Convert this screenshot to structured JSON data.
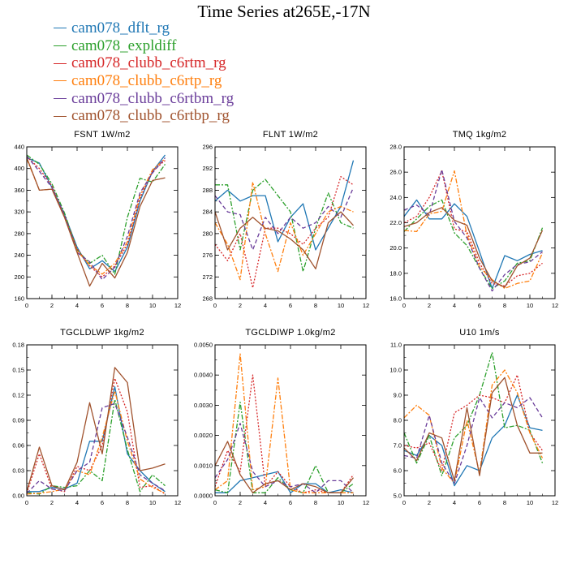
{
  "title": "Time Series at265E,-17N",
  "series": [
    {
      "name": "cam078_dflt_rg",
      "color": "#1f77b4",
      "dash": ""
    },
    {
      "name": "cam078_expldiff",
      "color": "#2ca02c",
      "dash": "6,2,2,2"
    },
    {
      "name": "cam078_clubb_c6rtm_rg",
      "color": "#d62728",
      "dash": "2,2"
    },
    {
      "name": "cam078_clubb_c6rtp_rg",
      "color": "#ff7f0e",
      "dash": "6,2,2,2"
    },
    {
      "name": "cam078_clubb_c6rtbm_rg",
      "color": "#6a3d9a",
      "dash": "5,3"
    },
    {
      "name": "cam078_clubb_c6rtbp_rg",
      "color": "#a0522d",
      "dash": ""
    }
  ],
  "chart_data": [
    {
      "type": "line",
      "title": "FSNT   1W/m2",
      "x": [
        0,
        1,
        2,
        3,
        4,
        5,
        6,
        7,
        8,
        9,
        10,
        11
      ],
      "xlim": [
        0,
        12
      ],
      "xticks": [
        "0",
        "2",
        "4",
        "6",
        "8",
        "10",
        "12"
      ],
      "ylim": [
        160,
        440
      ],
      "yticks": [
        "160",
        "200",
        "240",
        "280",
        "320",
        "360",
        "400",
        "440"
      ],
      "series": [
        {
          "name": "cam078_dflt_rg",
          "values": [
            420,
            410,
            365,
            315,
            255,
            215,
            230,
            210,
            255,
            340,
            395,
            425
          ]
        },
        {
          "name": "cam078_expldiff",
          "values": [
            425,
            408,
            372,
            318,
            250,
            225,
            240,
            205,
            310,
            382,
            375,
            408
          ]
        },
        {
          "name": "cam078_clubb_c6rtm_rg",
          "values": [
            422,
            400,
            368,
            312,
            252,
            220,
            200,
            220,
            260,
            345,
            395,
            415
          ]
        },
        {
          "name": "cam078_clubb_c6rtp_rg",
          "values": [
            418,
            360,
            362,
            310,
            248,
            222,
            205,
            225,
            265,
            350,
            398,
            418
          ]
        },
        {
          "name": "cam078_clubb_c6rtbm_rg",
          "values": [
            423,
            395,
            365,
            315,
            245,
            228,
            195,
            218,
            275,
            355,
            392,
            420
          ]
        },
        {
          "name": "cam078_clubb_c6rtbp_rg",
          "values": [
            420,
            360,
            362,
            310,
            245,
            183,
            225,
            198,
            245,
            330,
            378,
            383
          ]
        }
      ]
    },
    {
      "type": "line",
      "title": "FLNT   1W/m2",
      "x": [
        0,
        1,
        2,
        3,
        4,
        5,
        6,
        7,
        8,
        9,
        10,
        11
      ],
      "xlim": [
        0,
        12
      ],
      "xticks": [
        "0",
        "2",
        "4",
        "6",
        "8",
        "10",
        "12"
      ],
      "ylim": [
        268,
        296
      ],
      "yticks": [
        "268",
        "272",
        "276",
        "280",
        "284",
        "288",
        "292",
        "296"
      ],
      "series": [
        {
          "name": "cam078_dflt_rg",
          "values": [
            286,
            288,
            286,
            287,
            287,
            278.5,
            283,
            285.5,
            277,
            281,
            285,
            293.5
          ]
        },
        {
          "name": "cam078_expldiff",
          "values": [
            289,
            289,
            277,
            288,
            290,
            287,
            284,
            273,
            281,
            287.5,
            282,
            281
          ]
        },
        {
          "name": "cam078_clubb_c6rtm_rg",
          "values": [
            278,
            275,
            280,
            270,
            281,
            281,
            280,
            278,
            281,
            283,
            290.5,
            289
          ]
        },
        {
          "name": "cam078_clubb_c6rtp_rg",
          "values": [
            282,
            278,
            271.5,
            289.5,
            280,
            273,
            282,
            276,
            280,
            284,
            285,
            284
          ]
        },
        {
          "name": "cam078_clubb_c6rtbm_rg",
          "values": [
            287,
            284,
            283.5,
            277,
            283,
            280,
            283,
            281,
            282,
            285,
            283,
            288.5
          ]
        },
        {
          "name": "cam078_clubb_c6rtbp_rg",
          "values": [
            284,
            277,
            281,
            283,
            281,
            280.5,
            279,
            277,
            273.5,
            282,
            284,
            281.5
          ]
        }
      ]
    },
    {
      "type": "line",
      "title": "TMQ   1kg/m2",
      "x": [
        0,
        1,
        2,
        3,
        4,
        5,
        6,
        7,
        8,
        9,
        10,
        11
      ],
      "xlim": [
        0,
        12
      ],
      "xticks": [
        "0",
        "2",
        "4",
        "6",
        "8",
        "10",
        "12"
      ],
      "ylim": [
        16,
        28
      ],
      "yticks": [
        "16.0",
        "18.0",
        "20.0",
        "22.0",
        "24.0",
        "26.0",
        "28.0"
      ],
      "series": [
        {
          "name": "cam078_dflt_rg",
          "values": [
            22.5,
            23.8,
            22.3,
            22.3,
            23.5,
            22.5,
            19.7,
            16.8,
            19.4,
            19.0,
            19.5,
            19.8
          ]
        },
        {
          "name": "cam078_expldiff",
          "values": [
            21.3,
            22.3,
            23.3,
            23.8,
            21.2,
            20.2,
            18.4,
            16.8,
            17.4,
            18.8,
            19.0,
            21.6
          ]
        },
        {
          "name": "cam078_clubb_c6rtm_rg",
          "values": [
            22.0,
            22.5,
            24.0,
            26.1,
            21.5,
            21.3,
            18.8,
            17.2,
            17.0,
            17.8,
            18.0,
            18.8
          ]
        },
        {
          "name": "cam078_clubb_c6rtp_rg",
          "values": [
            21.4,
            21.3,
            22.7,
            22.9,
            26.1,
            21.0,
            18.5,
            17.5,
            16.8,
            17.2,
            17.4,
            19.6
          ]
        },
        {
          "name": "cam078_clubb_c6rtbm_rg",
          "values": [
            23.0,
            23.4,
            22.6,
            26.2,
            22.1,
            20.8,
            18.4,
            16.6,
            17.9,
            18.7,
            18.9,
            19.7
          ]
        },
        {
          "name": "cam078_clubb_c6rtbp_rg",
          "values": [
            21.7,
            22.0,
            22.8,
            23.2,
            22.2,
            21.8,
            19.2,
            17.4,
            16.9,
            18.6,
            19.2,
            21.4
          ]
        }
      ]
    },
    {
      "type": "line",
      "title": "TGCLDLWP   1kg/m2",
      "x": [
        0,
        1,
        2,
        3,
        4,
        5,
        6,
        7,
        8,
        9,
        10,
        11
      ],
      "xlim": [
        0,
        12
      ],
      "xticks": [
        "0",
        "2",
        "4",
        "6",
        "8",
        "10",
        "12"
      ],
      "ylim": [
        0,
        0.18
      ],
      "yticks": [
        "0.00",
        "0.03",
        "0.06",
        "0.09",
        "0.12",
        "0.15",
        "0.18"
      ],
      "series": [
        {
          "name": "cam078_dflt_rg",
          "values": [
            0.005,
            0.005,
            0.01,
            0.008,
            0.015,
            0.065,
            0.065,
            0.13,
            0.05,
            0.03,
            0.015,
            0.005
          ]
        },
        {
          "name": "cam078_expldiff",
          "values": [
            0.004,
            0.002,
            0.012,
            0.01,
            0.012,
            0.03,
            0.018,
            0.115,
            0.055,
            0.005,
            0.025,
            0.012
          ]
        },
        {
          "name": "cam078_clubb_c6rtm_rg",
          "values": [
            0.003,
            0.05,
            0.008,
            0.005,
            0.035,
            0.03,
            0.06,
            0.14,
            0.1,
            0.01,
            0.012,
            0.002
          ]
        },
        {
          "name": "cam078_clubb_c6rtp_rg",
          "values": [
            0.002,
            0.003,
            0.005,
            0.008,
            0.03,
            0.025,
            0.07,
            0.125,
            0.065,
            0.02,
            0.01,
            0.003
          ]
        },
        {
          "name": "cam078_clubb_c6rtbm_rg",
          "values": [
            0.003,
            0.018,
            0.008,
            0.006,
            0.03,
            0.04,
            0.105,
            0.11,
            0.07,
            0.025,
            0.015,
            0.006
          ]
        },
        {
          "name": "cam078_clubb_c6rtbp_rg",
          "values": [
            0.005,
            0.058,
            0.012,
            0.007,
            0.04,
            0.111,
            0.05,
            0.153,
            0.135,
            0.03,
            0.033,
            0.038
          ]
        }
      ]
    },
    {
      "type": "line",
      "title": "TGCLDIWP   1.0kg/m2",
      "x": [
        0,
        1,
        2,
        3,
        4,
        5,
        6,
        7,
        8,
        9,
        10,
        11
      ],
      "xlim": [
        0,
        12
      ],
      "xticks": [
        "0",
        "2",
        "4",
        "6",
        "8",
        "10",
        "12"
      ],
      "ylim": [
        0,
        0.005
      ],
      "yticks": [
        "0.0000",
        "0.0010",
        "0.0020",
        "0.0030",
        "0.0040",
        "0.0050"
      ],
      "series": [
        {
          "name": "cam078_dflt_rg",
          "values": [
            0.0001,
            0.0001,
            0.0005,
            0.0006,
            0.0007,
            0.0008,
            0.0001,
            0.0004,
            0.0004,
            0.0001,
            0.0002,
            0.0001
          ]
        },
        {
          "name": "cam078_expldiff",
          "values": [
            0.0002,
            0.0001,
            0.0031,
            0.0001,
            0.0001,
            0.0006,
            0.0002,
            0.0001,
            0.001,
            0.0001,
            0.0001,
            0.0004
          ]
        },
        {
          "name": "cam078_clubb_c6rtm_rg",
          "values": [
            0.0003,
            0.0015,
            0.0008,
            0.004,
            0.0003,
            0.0008,
            0.0003,
            0.0001,
            0.0002,
            0.0001,
            0.0001,
            0.0007
          ]
        },
        {
          "name": "cam078_clubb_c6rtp_rg",
          "values": [
            0.0002,
            0.0005,
            0.0047,
            0.0002,
            0.0003,
            0.0039,
            0.0002,
            0.0001,
            0.0001,
            0.0001,
            0.0001,
            0.0001
          ]
        },
        {
          "name": "cam078_clubb_c6rtbm_rg",
          "values": [
            0.0006,
            0.0012,
            0.0024,
            0.0008,
            0.0003,
            0.0005,
            0.0003,
            0.0004,
            0.0001,
            0.0005,
            0.0005,
            0.0001
          ]
        },
        {
          "name": "cam078_clubb_c6rtbp_rg",
          "values": [
            0.001,
            0.0018,
            0.0007,
            0.0001,
            0.0004,
            0.0005,
            0.0002,
            0.0004,
            0.0003,
            0.0001,
            0.0001,
            0.0006
          ]
        }
      ]
    },
    {
      "type": "line",
      "title": "U10   1m/s",
      "x": [
        0,
        1,
        2,
        3,
        4,
        5,
        6,
        7,
        8,
        9,
        10,
        11
      ],
      "xlim": [
        0,
        12
      ],
      "xticks": [
        "0",
        "2",
        "4",
        "6",
        "8",
        "10",
        "12"
      ],
      "ylim": [
        5,
        11
      ],
      "yticks": [
        "5.0",
        "6.0",
        "7.0",
        "8.0",
        "9.0",
        "10.0",
        "11.0"
      ],
      "series": [
        {
          "name": "cam078_dflt_rg",
          "values": [
            6.8,
            6.6,
            7.4,
            7.0,
            5.4,
            6.2,
            6.0,
            7.3,
            7.8,
            9.0,
            7.7,
            7.6
          ]
        },
        {
          "name": "cam078_expldiff",
          "values": [
            7.5,
            6.3,
            7.4,
            5.8,
            7.3,
            7.8,
            9.0,
            10.7,
            7.7,
            7.8,
            7.6,
            6.3
          ]
        },
        {
          "name": "cam078_clubb_c6rtm_rg",
          "values": [
            7.0,
            6.9,
            7.1,
            6.0,
            8.3,
            8.6,
            9.0,
            8.9,
            8.7,
            9.8,
            7.5,
            6.8
          ]
        },
        {
          "name": "cam078_clubb_c6rtp_rg",
          "values": [
            8.1,
            8.6,
            8.2,
            6.1,
            5.5,
            8.0,
            5.9,
            9.4,
            10.0,
            9.1,
            7.5,
            6.5
          ]
        },
        {
          "name": "cam078_clubb_c6rtbm_rg",
          "values": [
            6.6,
            6.5,
            8.2,
            6.3,
            5.5,
            7.0,
            8.9,
            8.1,
            8.7,
            8.5,
            8.9,
            8.1
          ]
        },
        {
          "name": "cam078_clubb_c6rtbp_rg",
          "values": [
            6.9,
            6.4,
            7.5,
            7.3,
            5.6,
            8.5,
            5.8,
            9.1,
            9.7,
            7.8,
            6.7,
            6.7
          ]
        }
      ]
    }
  ]
}
